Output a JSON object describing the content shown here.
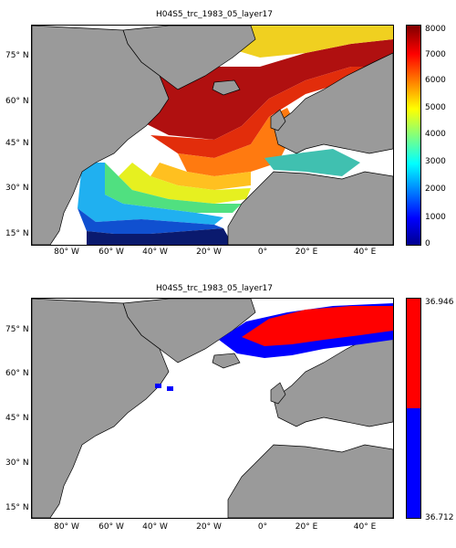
{
  "top": {
    "title": "H04S5_trc_1983_05_layer17",
    "lat_labels": [
      "75° N",
      "60° N",
      "45° N",
      "30° N",
      "15° N"
    ],
    "lon_labels": [
      "80° W",
      "60° W",
      "40° W",
      "20° W",
      "0°",
      "20° E",
      "40° E"
    ],
    "colorbar": {
      "ticks": [
        "8000",
        "7000",
        "6000",
        "5000",
        "4000",
        "3000",
        "2000",
        "1000",
        "0"
      ],
      "range": [
        0,
        8000
      ],
      "colormap": "jet"
    }
  },
  "bottom": {
    "title": "H04S5_trc_1983_05_layer17",
    "lat_labels": [
      "75° N",
      "60° N",
      "45° N",
      "30° N",
      "15° N"
    ],
    "lon_labels": [
      "80° W",
      "60° W",
      "40° W",
      "20° W",
      "0°",
      "20° E",
      "40° E"
    ],
    "colorbar": {
      "max_label": "36.946",
      "min_label": "36.712",
      "high_color": "#ff0000",
      "low_color": "#0000ff"
    }
  },
  "colors": {
    "land": "#9a9a9a",
    "ocean": "#ffffff",
    "coast": "#000000"
  }
}
